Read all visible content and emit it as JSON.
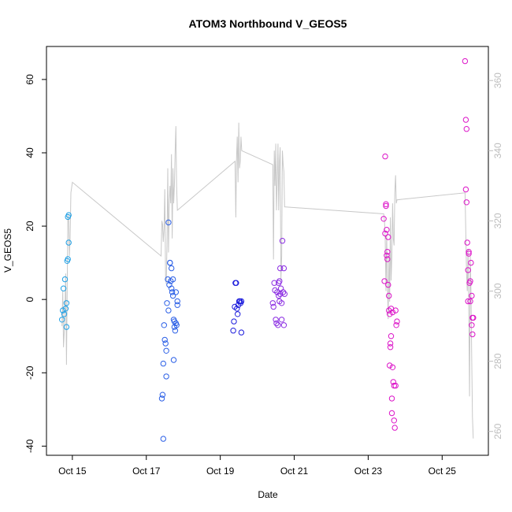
{
  "chart_data": {
    "type": "scatter",
    "title": "ATOM3 Northbound V_GEOS5",
    "xlabel": "Date",
    "ylabel": "V_GEOS5",
    "x_ticks": [
      "Oct 15",
      "Oct 17",
      "Oct 19",
      "Oct 21",
      "Oct 23",
      "Oct 25"
    ],
    "y_ticks": [
      "-40",
      "-20",
      "0",
      "20",
      "40",
      "60"
    ],
    "y2_ticks": [
      "260",
      "280",
      "300",
      "320",
      "340",
      "360"
    ],
    "xlim": [
      14.3,
      26.25
    ],
    "ylim": [
      -42.5,
      69
    ],
    "y2lim": [
      253.2,
      369.7
    ],
    "grid": false,
    "secondary_line_color": "#c8c8c8",
    "secondary_axis_color": "#bdbdbd",
    "series": [
      {
        "color": "#1EA0E6",
        "points": [
          [
            14.72,
            -5.5
          ],
          [
            14.74,
            -3.0
          ],
          [
            14.76,
            3.0
          ],
          [
            14.78,
            -4.0
          ],
          [
            14.8,
            5.5
          ],
          [
            14.82,
            -2.5
          ],
          [
            14.84,
            -7.5
          ],
          [
            14.84,
            -1.0
          ],
          [
            14.86,
            10.5
          ],
          [
            14.88,
            11.0
          ],
          [
            14.88,
            22.5
          ],
          [
            14.9,
            23.0
          ],
          [
            14.9,
            15.5
          ]
        ]
      },
      {
        "color": "#2B5FE6",
        "points": [
          [
            17.42,
            -27.0
          ],
          [
            17.44,
            -26.0
          ],
          [
            17.46,
            -38.0
          ],
          [
            17.46,
            -17.5
          ],
          [
            17.48,
            -7.0
          ],
          [
            17.5,
            -11.0
          ],
          [
            17.52,
            -12.0
          ],
          [
            17.54,
            -14.0
          ],
          [
            17.54,
            -21.0
          ],
          [
            17.56,
            -1.0
          ],
          [
            17.58,
            5.5
          ],
          [
            17.6,
            21.0
          ],
          [
            17.6,
            -3.0
          ],
          [
            17.62,
            4.0
          ],
          [
            17.64,
            10.0
          ],
          [
            17.64,
            10.0
          ],
          [
            17.66,
            5.0
          ],
          [
            17.68,
            8.5
          ],
          [
            17.68,
            3.0
          ],
          [
            17.7,
            2.0
          ],
          [
            17.72,
            5.5
          ],
          [
            17.72,
            1.0
          ],
          [
            17.74,
            -5.5
          ],
          [
            17.74,
            -16.5
          ],
          [
            17.76,
            -7.5
          ],
          [
            17.76,
            -6.0
          ],
          [
            17.78,
            -8.5
          ],
          [
            17.8,
            -6.5
          ],
          [
            17.8,
            2.0
          ],
          [
            17.82,
            -7.0
          ],
          [
            17.84,
            -0.5
          ],
          [
            17.84,
            -1.5
          ]
        ]
      },
      {
        "color": "#1A1ADC",
        "points": [
          [
            19.35,
            -8.5
          ],
          [
            19.37,
            -6.0
          ],
          [
            19.39,
            -2.0
          ],
          [
            19.41,
            4.5
          ],
          [
            19.43,
            4.5
          ],
          [
            19.45,
            -2.5
          ],
          [
            19.47,
            -4.0
          ],
          [
            19.49,
            -1.5
          ],
          [
            19.51,
            -0.5
          ],
          [
            19.53,
            -0.5
          ],
          [
            19.55,
            -1.0
          ],
          [
            19.57,
            -0.5
          ],
          [
            19.57,
            -9.0
          ]
        ]
      },
      {
        "color": "#8A2BE2",
        "points": [
          [
            20.42,
            -1.0
          ],
          [
            20.44,
            -2.0
          ],
          [
            20.46,
            4.5
          ],
          [
            20.48,
            2.5
          ],
          [
            20.5,
            -5.5
          ],
          [
            20.52,
            -6.5
          ],
          [
            20.54,
            2.0
          ],
          [
            20.56,
            -7.0
          ],
          [
            20.58,
            1.0
          ],
          [
            20.58,
            4.5
          ],
          [
            20.6,
            5.0
          ],
          [
            20.62,
            8.5
          ],
          [
            20.64,
            3.0
          ],
          [
            20.66,
            -1.0
          ],
          [
            20.66,
            -5.5
          ],
          [
            20.68,
            16.0
          ],
          [
            20.7,
            2.0
          ],
          [
            20.72,
            -7.0
          ],
          [
            20.72,
            8.5
          ],
          [
            20.74,
            1.5
          ],
          [
            20.62,
            1.5
          ],
          [
            20.6,
            -0.5
          ]
        ]
      },
      {
        "color": "#DC14C8",
        "points": [
          [
            23.42,
            22.0
          ],
          [
            23.44,
            5.0
          ],
          [
            23.46,
            18.0
          ],
          [
            23.46,
            39.0
          ],
          [
            23.48,
            26.0
          ],
          [
            23.48,
            25.5
          ],
          [
            23.5,
            19.0
          ],
          [
            23.5,
            12.0
          ],
          [
            23.52,
            13.0
          ],
          [
            23.52,
            11.0
          ],
          [
            23.54,
            17.0
          ],
          [
            23.54,
            4.0
          ],
          [
            23.56,
            1.0
          ],
          [
            23.56,
            -3.0
          ],
          [
            23.58,
            -4.0
          ],
          [
            23.58,
            -18.0
          ],
          [
            23.6,
            -12.0
          ],
          [
            23.6,
            -13.0
          ],
          [
            23.62,
            -2.5
          ],
          [
            23.62,
            -10.0
          ],
          [
            23.64,
            -27.0
          ],
          [
            23.64,
            -31.0
          ],
          [
            23.66,
            -18.5
          ],
          [
            23.66,
            -3.5
          ],
          [
            23.68,
            -22.5
          ],
          [
            23.7,
            -23.5
          ],
          [
            23.7,
            -33.0
          ],
          [
            23.72,
            -35.0
          ],
          [
            23.74,
            -23.5
          ],
          [
            23.74,
            -3.0
          ],
          [
            23.76,
            -7.0
          ],
          [
            23.78,
            -6.0
          ],
          [
            25.62,
            65.0
          ],
          [
            25.64,
            49.0
          ],
          [
            25.64,
            30.0
          ],
          [
            25.66,
            46.5
          ],
          [
            25.66,
            26.5
          ],
          [
            25.68,
            15.5
          ],
          [
            25.7,
            8.0
          ],
          [
            25.7,
            -0.5
          ],
          [
            25.72,
            13.0
          ],
          [
            25.72,
            12.5
          ],
          [
            25.74,
            4.5
          ],
          [
            25.76,
            5.0
          ],
          [
            25.76,
            -0.5
          ],
          [
            25.78,
            10.0
          ],
          [
            25.8,
            1.0
          ],
          [
            25.8,
            -7.0
          ],
          [
            25.82,
            -5.0
          ],
          [
            25.82,
            -9.5
          ],
          [
            25.84,
            -5.0
          ]
        ]
      }
    ],
    "secondary_line": {
      "points": [
        [
          14.72,
          290
        ],
        [
          14.74,
          300
        ],
        [
          14.76,
          284
        ],
        [
          14.78,
          288
        ],
        [
          14.8,
          295
        ],
        [
          14.82,
          305
        ],
        [
          14.84,
          279
        ],
        [
          14.86,
          300
        ],
        [
          14.88,
          322
        ],
        [
          14.9,
          320
        ],
        [
          14.92,
          310
        ],
        [
          14.94,
          315
        ],
        [
          14.96,
          328
        ],
        [
          15.0,
          331
        ],
        [
          17.4,
          310
        ],
        [
          17.42,
          320
        ],
        [
          17.44,
          319
        ],
        [
          17.46,
          314
        ],
        [
          17.48,
          318
        ],
        [
          17.5,
          329
        ],
        [
          17.52,
          304
        ],
        [
          17.54,
          302
        ],
        [
          17.56,
          313
        ],
        [
          17.58,
          335
        ],
        [
          17.6,
          311
        ],
        [
          17.62,
          325
        ],
        [
          17.64,
          330
        ],
        [
          17.66,
          325
        ],
        [
          17.68,
          339
        ],
        [
          17.7,
          315
        ],
        [
          17.72,
          335
        ],
        [
          17.74,
          325
        ],
        [
          17.76,
          330
        ],
        [
          17.78,
          340
        ],
        [
          17.8,
          347
        ],
        [
          17.82,
          330
        ],
        [
          17.84,
          323
        ],
        [
          19.4,
          337
        ],
        [
          19.42,
          321
        ],
        [
          19.44,
          338
        ],
        [
          19.46,
          344
        ],
        [
          19.48,
          331
        ],
        [
          19.5,
          348
        ],
        [
          19.52,
          335
        ],
        [
          19.54,
          337
        ],
        [
          19.56,
          344
        ],
        [
          19.58,
          340
        ],
        [
          20.42,
          336
        ],
        [
          20.44,
          309
        ],
        [
          20.46,
          340
        ],
        [
          20.48,
          330
        ],
        [
          20.5,
          342
        ],
        [
          20.52,
          323
        ],
        [
          20.54,
          331
        ],
        [
          20.56,
          342
        ],
        [
          20.58,
          323
        ],
        [
          20.6,
          337
        ],
        [
          20.62,
          341
        ],
        [
          20.64,
          303
        ],
        [
          20.66,
          310
        ],
        [
          20.68,
          340
        ],
        [
          20.7,
          336
        ],
        [
          20.72,
          334
        ],
        [
          20.74,
          324
        ],
        [
          23.42,
          322
        ],
        [
          23.44,
          320
        ],
        [
          23.46,
          315
        ],
        [
          23.48,
          300
        ],
        [
          23.5,
          316
        ],
        [
          23.52,
          303
        ],
        [
          23.54,
          292
        ],
        [
          23.56,
          310
        ],
        [
          23.58,
          297
        ],
        [
          23.6,
          321
        ],
        [
          23.62,
          303
        ],
        [
          23.64,
          310
        ],
        [
          23.66,
          325
        ],
        [
          23.68,
          315
        ],
        [
          23.7,
          313
        ],
        [
          23.72,
          328
        ],
        [
          23.74,
          333
        ],
        [
          23.76,
          325
        ],
        [
          23.78,
          326
        ],
        [
          25.62,
          328
        ],
        [
          25.64,
          316
        ],
        [
          25.66,
          305
        ],
        [
          25.68,
          300
        ],
        [
          25.7,
          312
        ],
        [
          25.72,
          295
        ],
        [
          25.74,
          270
        ],
        [
          25.76,
          310
        ],
        [
          25.78,
          300
        ],
        [
          25.8,
          280
        ],
        [
          25.82,
          264
        ],
        [
          25.84,
          258
        ]
      ]
    }
  }
}
